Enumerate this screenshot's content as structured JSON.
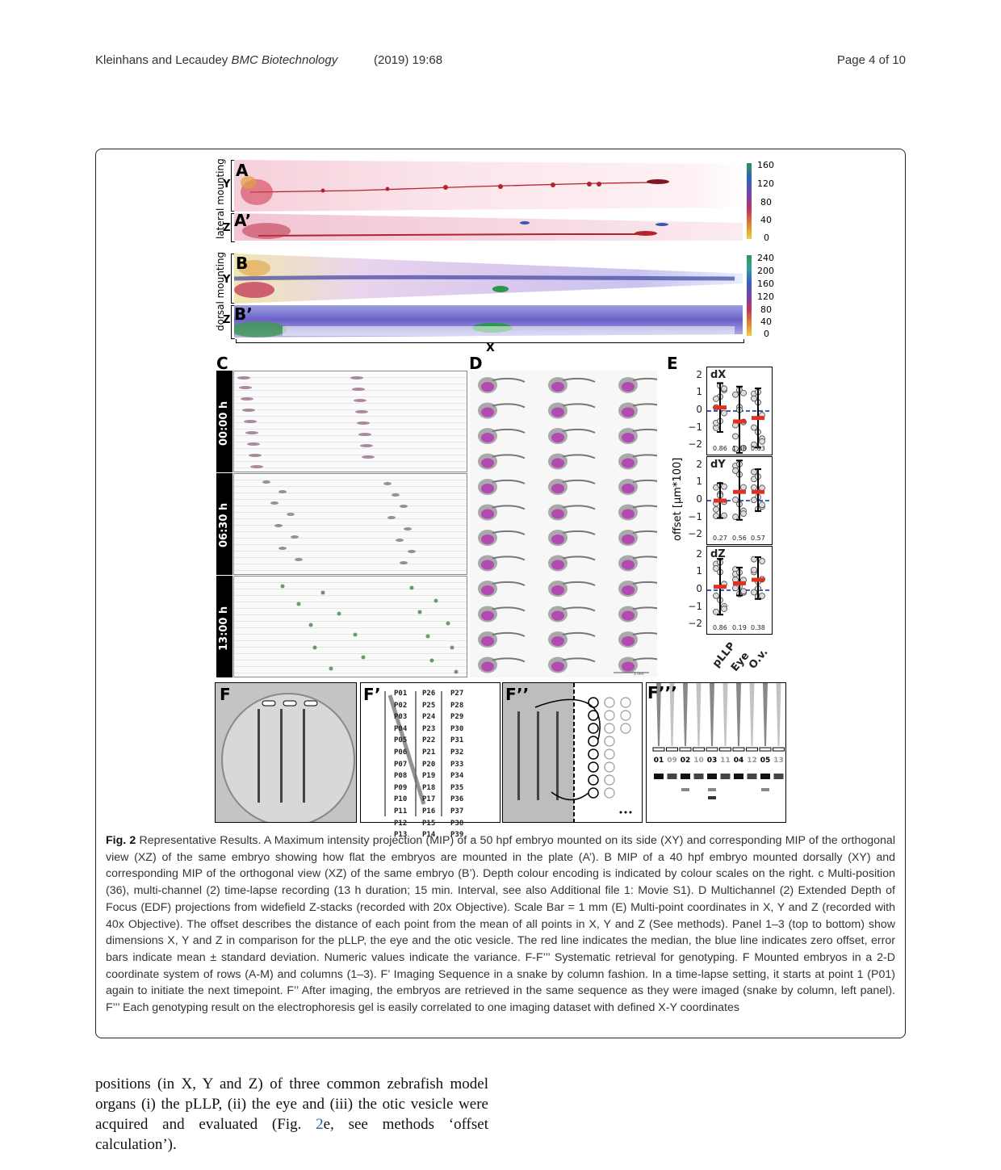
{
  "header": {
    "authors": "Kleinhans and Lecaudey",
    "journal": "BMC Biotechnology",
    "volume": "(2019) 19:68",
    "page": "Page 4 of 10"
  },
  "panels": {
    "A": "A",
    "A_prime": "A’",
    "B": "B",
    "B_prime": "B’",
    "C": "C",
    "D": "D",
    "E": "E",
    "F": "F",
    "F1": "F’",
    "F2": "F’’",
    "F3": "F’’’"
  },
  "axis_labels": {
    "lateral": "lateral mounting",
    "dorsal": "dorsal mounting",
    "y": "Y",
    "z": "Z",
    "x": "X",
    "offset": "offset [µm*100]"
  },
  "scale_A": [
    "160",
    "120",
    "80",
    "40",
    "0"
  ],
  "scale_B": [
    "240",
    "200",
    "160",
    "120",
    "80",
    "40",
    "0"
  ],
  "times": [
    "00:00 h",
    "06:30 h",
    "13:00 h"
  ],
  "scale_bar_D": "1 mm",
  "wells": {
    "col1": [
      "P01",
      "P02",
      "P03",
      "P04",
      "P05",
      "P06",
      "P07",
      "P08",
      "P09",
      "P10",
      "P11",
      "P12",
      "P13"
    ],
    "col2": [
      "P26",
      "P25",
      "P24",
      "P23",
      "P22",
      "P21",
      "P20",
      "P19",
      "P18",
      "P17",
      "P16",
      "P15",
      "P14"
    ],
    "col3": [
      "P27",
      "P28",
      "P29",
      "P30",
      "P31",
      "P32",
      "P33",
      "P34",
      "P35",
      "P36",
      "P37",
      "P38",
      "P39"
    ]
  },
  "gel_lanes": [
    "01",
    "09",
    "02",
    "10",
    "03",
    "11",
    "04",
    "12",
    "05",
    "13"
  ],
  "chart_data": {
    "type": "scatter",
    "ylabel": "offset [µm*100]",
    "categories": [
      "pLLP",
      "Eye",
      "O.v."
    ],
    "yticks": [
      "2",
      "1",
      "0",
      "−1",
      "−2"
    ],
    "ylim": [
      -2.5,
      2.5
    ],
    "panels": [
      {
        "title": "dX",
        "median": [
          0.2,
          -0.6,
          -0.4
        ],
        "mean": [
          0.2,
          -0.5,
          -0.4
        ],
        "sd": [
          1.4,
          1.9,
          1.7
        ],
        "variance": [
          "0.86",
          "1.38",
          "0.83"
        ]
      },
      {
        "title": "dY",
        "median": [
          0.0,
          0.5,
          0.5
        ],
        "mean": [
          0.0,
          0.6,
          0.6
        ],
        "sd": [
          1.0,
          1.7,
          1.2
        ],
        "variance": [
          "0.27",
          "0.56",
          "0.57"
        ]
      },
      {
        "title": "dZ",
        "median": [
          0.2,
          0.4,
          0.6
        ],
        "mean": [
          0.2,
          0.5,
          0.7
        ],
        "sd": [
          1.6,
          0.8,
          1.2
        ],
        "variance": [
          "0.86",
          "0.19",
          "0.38"
        ]
      }
    ]
  },
  "caption": {
    "fig_label": "Fig. 2",
    "text": " Representative Results. A Maximum intensity projection (MIP) of a 50 hpf embryo mounted on its side (XY) and corresponding MIP of the orthogonal view (XZ) of the same embryo showing how flat the embryos are mounted in the plate (A’). B MIP of a 40 hpf embryo mounted dorsally (XY) and corresponding MIP of the orthogonal view (XZ) of the same embryo (B’). Depth colour encoding is indicated by colour scales on the right. c Multi-position (36), multi-channel (2) time-lapse recording (13 h duration; 15 min. Interval, see also Additional file 1: Movie S1). D Multichannel (2) Extended Depth of Focus (EDF) projections from widefield Z-stacks (recorded with 20x Objective). Scale Bar = 1 mm (E) Multi-point coordinates in X, Y and Z (recorded with 40x Objective). The offset describes the distance of each point from the mean of all points in X, Y and Z (See methods). Panel 1–3 (top to bottom) show dimensions X, Y and Z in comparison for the pLLP, the eye and the otic vesicle. The red line indicates the median, the blue line indicates zero offset, error bars indicate mean ± standard deviation. Numeric values indicate the variance. F-F’’’ Systematic retrieval for genotyping. F Mounted embryos in a 2-D coordinate system of rows (A-M) and columns (1–3). F’ Imaging Sequence in a snake by column fashion. In a time-lapse setting, it starts at point 1 (P01) again to initiate the next timepoint. F’’ After imaging, the embryos are retrieved in the same sequence as they were imaged (snake by column, left panel). F’’’ Each genotyping result on the electrophoresis gel is easily correlated to one imaging dataset with defined X-Y coordinates"
  },
  "body": {
    "text_before": "positions (in X, Y and Z) of three common zebrafish model organs (i) the pLLP, (ii) the eye and (iii) the otic vesicle were acquired and evaluated (Fig. ",
    "link": "2",
    "text_after": "e, see methods ‘offset calculation’)."
  }
}
